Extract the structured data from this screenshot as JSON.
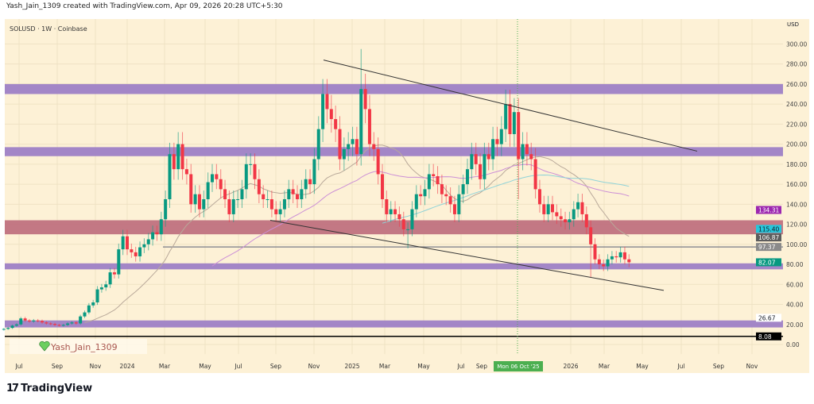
{
  "header": {
    "credit": "Yash_Jain_1309 created with TradingView.com, Apr 09, 2026 20:28 UTC+5:30",
    "symbol_line": "SOLUSD · 1W · Coinbase"
  },
  "watermark": {
    "text": "Yash_Jain_1309",
    "icon": "heart-icon",
    "icon_color": "#6ccf5f"
  },
  "footer": {
    "logo_text": "TradingView",
    "logo_icon": "tradingview-logo-icon"
  },
  "colors": {
    "background": "#fdf1d6",
    "up": "#089981",
    "down": "#f23645",
    "zone_purple": "#9e7fc6",
    "zone_red": "#c0717f",
    "crosshair": "#4caf50"
  },
  "chart_data": {
    "type": "candlestick",
    "title": "SOLUSD · 1W · Coinbase",
    "currency_label": "USD",
    "ylim": [
      0,
      320
    ],
    "y_ticks": [
      "0.00",
      "20.00",
      "40.00",
      "60.00",
      "80.00",
      "100.00",
      "120.00",
      "140.00",
      "160.00",
      "180.00",
      "200.00",
      "220.00",
      "240.00",
      "260.00",
      "280.00",
      "300.00"
    ],
    "x_ticks": [
      "Jul",
      "Sep",
      "Nov",
      "2024",
      "Mar",
      "May",
      "Jul",
      "Sep",
      "Nov",
      "2025",
      "Mar",
      "May",
      "Jul",
      "Sep",
      "2026",
      "Mar",
      "May",
      "Jul",
      "Sep",
      "Nov"
    ],
    "weekly_closes": [
      15.5,
      16.5,
      18.8,
      20,
      26,
      24,
      23,
      24,
      23.5,
      22,
      21,
      20.5,
      19.5,
      19,
      19.5,
      21,
      22,
      21,
      28,
      32,
      39,
      42,
      55,
      57,
      60,
      72,
      70,
      95,
      108,
      95,
      92,
      88,
      97,
      100,
      105,
      112,
      110,
      125,
      145,
      190,
      175,
      200,
      175,
      170,
      140,
      150,
      135,
      145,
      162,
      170,
      165,
      155,
      145,
      130,
      145,
      145,
      155,
      180,
      180,
      165,
      150,
      145,
      145,
      135,
      130,
      135,
      145,
      155,
      150,
      145,
      155,
      165,
      160,
      185,
      215,
      250,
      235,
      225,
      215,
      185,
      195,
      200,
      205,
      190,
      255,
      235,
      200,
      195,
      170,
      145,
      130,
      135,
      130,
      125,
      115,
      115,
      135,
      150,
      148,
      155,
      170,
      168,
      160,
      150,
      148,
      140,
      130,
      150,
      160,
      175,
      190,
      180,
      165,
      190,
      185,
      205,
      200,
      215,
      240,
      210,
      232,
      185,
      200,
      190,
      185,
      155,
      140,
      130,
      140,
      132,
      128,
      125,
      122,
      125,
      135,
      142,
      130,
      117,
      100,
      85,
      80,
      78,
      85,
      88,
      87,
      92,
      85,
      82.07
    ],
    "notable_wicks": [
      {
        "week": "Jan 20 2025",
        "high": 295
      },
      {
        "week": "Apr 07 2025",
        "low": 96
      },
      {
        "week": "Oct 06 2025",
        "low": 145
      },
      {
        "week": "Feb 02 2026",
        "low": 67
      }
    ],
    "moving_averages": [
      {
        "color": "#b9a99a",
        "period": 20
      },
      {
        "color": "#cc8fd6",
        "period": 50
      },
      {
        "color": "#8fd3d8",
        "period": 90
      }
    ],
    "zones": [
      {
        "from": 250,
        "to": 260,
        "color": "#9e7fc6"
      },
      {
        "from": 188,
        "to": 197,
        "color": "#9e7fc6"
      },
      {
        "from": 110,
        "to": 124,
        "color": "#c0717f"
      },
      {
        "from": 75,
        "to": 81,
        "color": "#9e7fc6"
      },
      {
        "from": 17,
        "to": 24,
        "color": "#9e7fc6"
      }
    ],
    "trendlines": [
      {
        "from_price": 284,
        "to_price": 193
      },
      {
        "from_price": 124,
        "to_price": 54
      }
    ],
    "horizontal_lines": [
      {
        "price": 97.37,
        "color": "#787b86"
      },
      {
        "price": 8.08,
        "color": "#000000"
      }
    ],
    "price_labels": [
      {
        "text": "134.31",
        "value": 134.31,
        "bg": "#9c27b0",
        "fg": "#ffffff"
      },
      {
        "text": "115.40",
        "value": 115.4,
        "bg": "#26c6da",
        "fg": "#131722"
      },
      {
        "text": "106.87",
        "value": 106.87,
        "bg": "#5d5d5d",
        "fg": "#ffffff"
      },
      {
        "text": "97.37",
        "value": 97.37,
        "bg": "#8a8a8a",
        "fg": "#ffffff"
      },
      {
        "text": "82.07",
        "value": 82.07,
        "bg": "#089981",
        "fg": "#ffffff"
      },
      {
        "text": "26.67",
        "value": 26.67,
        "bg": "#ffffff",
        "fg": "#131722"
      },
      {
        "text": "8.08",
        "value": 8.08,
        "bg": "#000000",
        "fg": "#ffffff"
      }
    ],
    "crosshair_label": "Mon 06 Oct '25"
  }
}
